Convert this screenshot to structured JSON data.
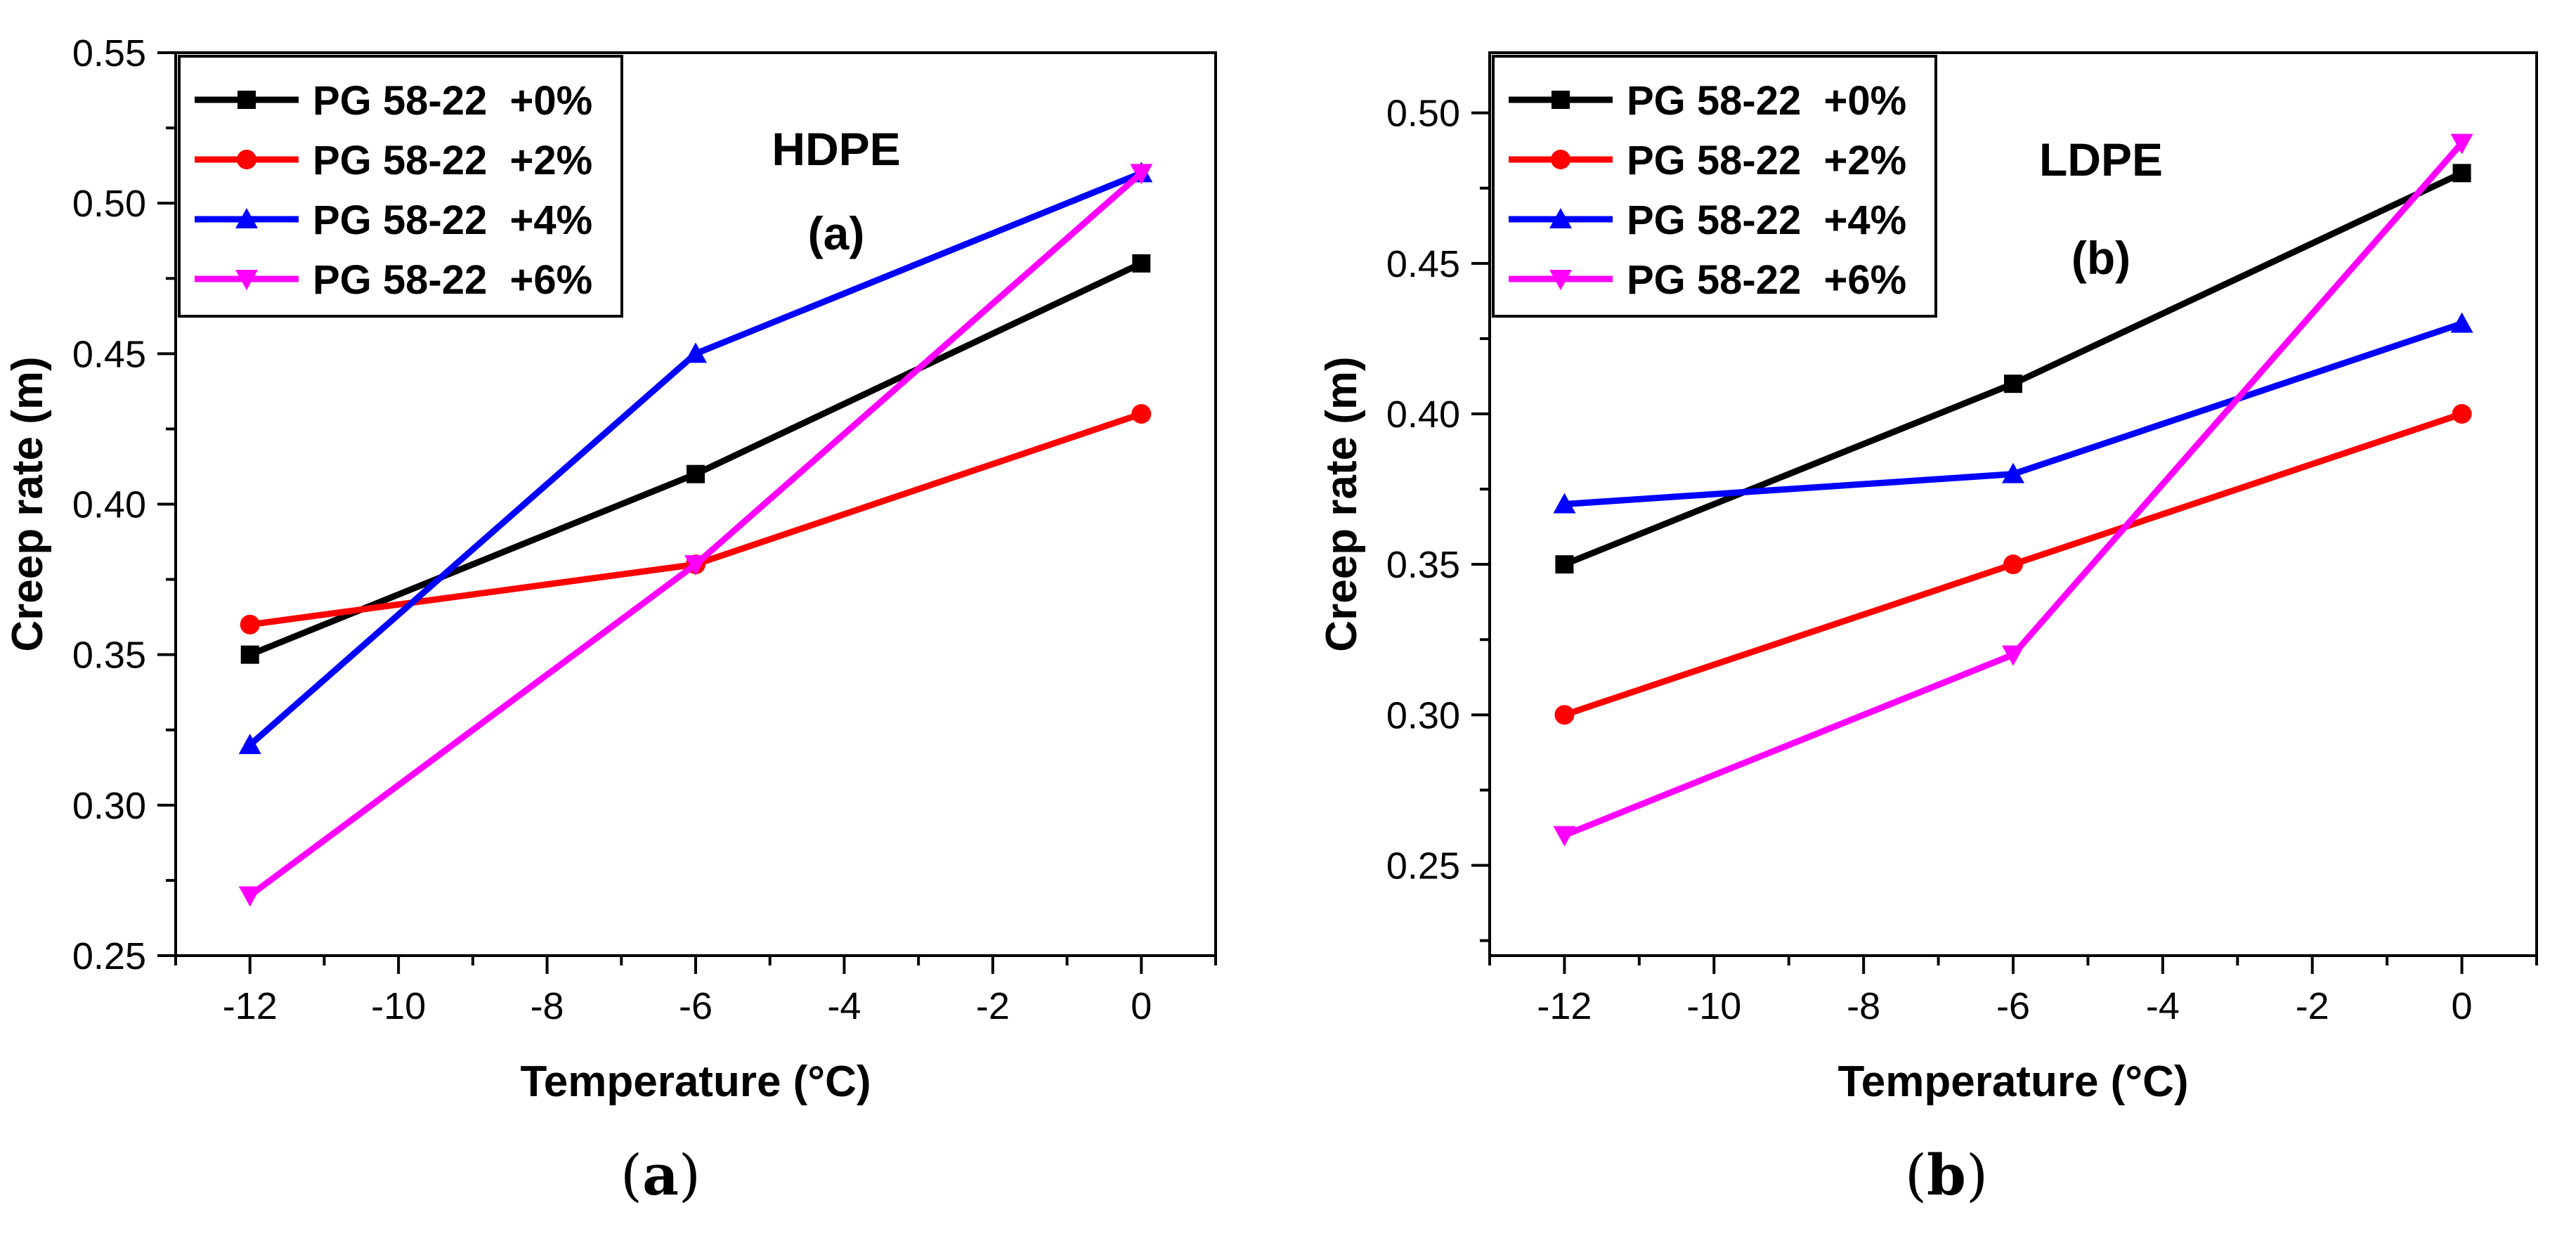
{
  "chart_data": [
    {
      "type": "line",
      "panel": "(a)",
      "annotation_material": "HDPE",
      "annotation_label": "(a)",
      "xlabel": "Temperature (°C)",
      "ylabel": "Creep rate (m)",
      "xlim": [
        -13,
        1
      ],
      "ylim": [
        0.25,
        0.55
      ],
      "xticks": [
        -12,
        -10,
        -8,
        -6,
        -4,
        -2,
        0
      ],
      "xtick_labels": [
        "-12",
        "-10",
        "-8",
        "-6",
        "-4",
        "-2",
        "0"
      ],
      "yticks": [
        0.25,
        0.3,
        0.35,
        0.4,
        0.45,
        0.5,
        0.55
      ],
      "ytick_labels": [
        "0.25",
        "0.30",
        "0.35",
        "0.40",
        "0.45",
        "0.50",
        "0.55"
      ],
      "legend_position": "top-left",
      "grid": false,
      "x": [
        -12,
        -6,
        0
      ],
      "series": [
        {
          "name": "PG 58-22  +0%",
          "color": "#000000",
          "marker": "square",
          "values": [
            0.35,
            0.41,
            0.48
          ]
        },
        {
          "name": "PG 58-22  +2%",
          "color": "#ff0000",
          "marker": "circle",
          "values": [
            0.36,
            0.38,
            0.43
          ]
        },
        {
          "name": "PG 58-22  +4%",
          "color": "#0000ff",
          "marker": "triangle-up",
          "values": [
            0.32,
            0.45,
            0.51
          ]
        },
        {
          "name": "PG 58-22  +6%",
          "color": "#ff00ff",
          "marker": "triangle-down",
          "values": [
            0.27,
            0.38,
            0.51
          ]
        }
      ]
    },
    {
      "type": "line",
      "panel": "(b)",
      "annotation_material": "LDPE",
      "annotation_label": "(b)",
      "xlabel": "Temperature (°C)",
      "ylabel": "Creep rate (m)",
      "xlim": [
        -13,
        1
      ],
      "ylim": [
        0.22,
        0.52
      ],
      "xticks": [
        -12,
        -10,
        -8,
        -6,
        -4,
        -2,
        0
      ],
      "xtick_labels": [
        "-12",
        "-10",
        "-8",
        "-6",
        "-4",
        "-2",
        "0"
      ],
      "yticks": [
        0.25,
        0.3,
        0.35,
        0.4,
        0.45,
        0.5
      ],
      "ytick_labels": [
        "0.25",
        "0.30",
        "0.35",
        "0.40",
        "0.45",
        "0.50"
      ],
      "legend_position": "top-left",
      "grid": false,
      "x": [
        -12,
        -6,
        0
      ],
      "series": [
        {
          "name": "PG 58-22  +0%",
          "color": "#000000",
          "marker": "square",
          "values": [
            0.35,
            0.41,
            0.48
          ]
        },
        {
          "name": "PG 58-22  +2%",
          "color": "#ff0000",
          "marker": "circle",
          "values": [
            0.3,
            0.35,
            0.4
          ]
        },
        {
          "name": "PG 58-22  +4%",
          "color": "#0000ff",
          "marker": "triangle-up",
          "values": [
            0.37,
            0.38,
            0.43
          ]
        },
        {
          "name": "PG 58-22  +6%",
          "color": "#ff00ff",
          "marker": "triangle-down",
          "values": [
            0.26,
            0.32,
            0.49
          ]
        }
      ]
    }
  ],
  "captions": {
    "a_open": "(",
    "a_letter": "a",
    "a_close": ")",
    "b_open": "(",
    "b_letter": "b",
    "b_close": ")"
  }
}
